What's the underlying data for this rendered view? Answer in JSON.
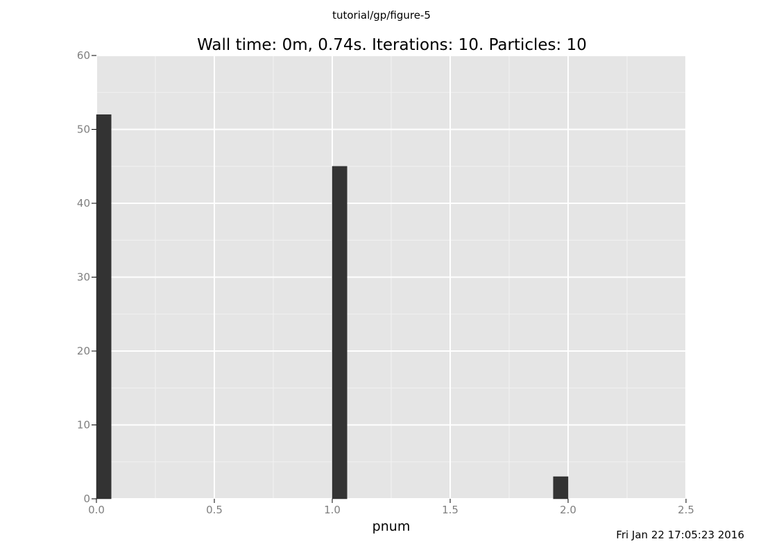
{
  "page": {
    "header": "tutorial/gp/figure-5",
    "footer": "Fri Jan 22 17:05:23 2016"
  },
  "chart_data": {
    "type": "bar",
    "title": "Wall time: 0m, 0.74s. Iterations: 10. Particles: 10",
    "xlabel": "pnum",
    "ylabel": "",
    "xlim": [
      0,
      2.5
    ],
    "ylim": [
      0,
      60
    ],
    "x_ticks": [
      "0.0",
      "0.5",
      "1.0",
      "1.5",
      "2.0",
      "2.5"
    ],
    "y_ticks": [
      "0",
      "10",
      "20",
      "30",
      "40",
      "50",
      "60"
    ],
    "bin_width": 0.0625,
    "bars": [
      {
        "x_start": 0.0,
        "value": 52
      },
      {
        "x_start": 1.0,
        "value": 45
      },
      {
        "x_start": 1.9375,
        "value": 3
      }
    ],
    "grid": true,
    "colors": {
      "panel": "#e5e5e5",
      "grid_major": "#ffffff",
      "grid_minor": "#f2f2f2",
      "bar": "#333333",
      "tick": "#7f7f7f"
    }
  }
}
